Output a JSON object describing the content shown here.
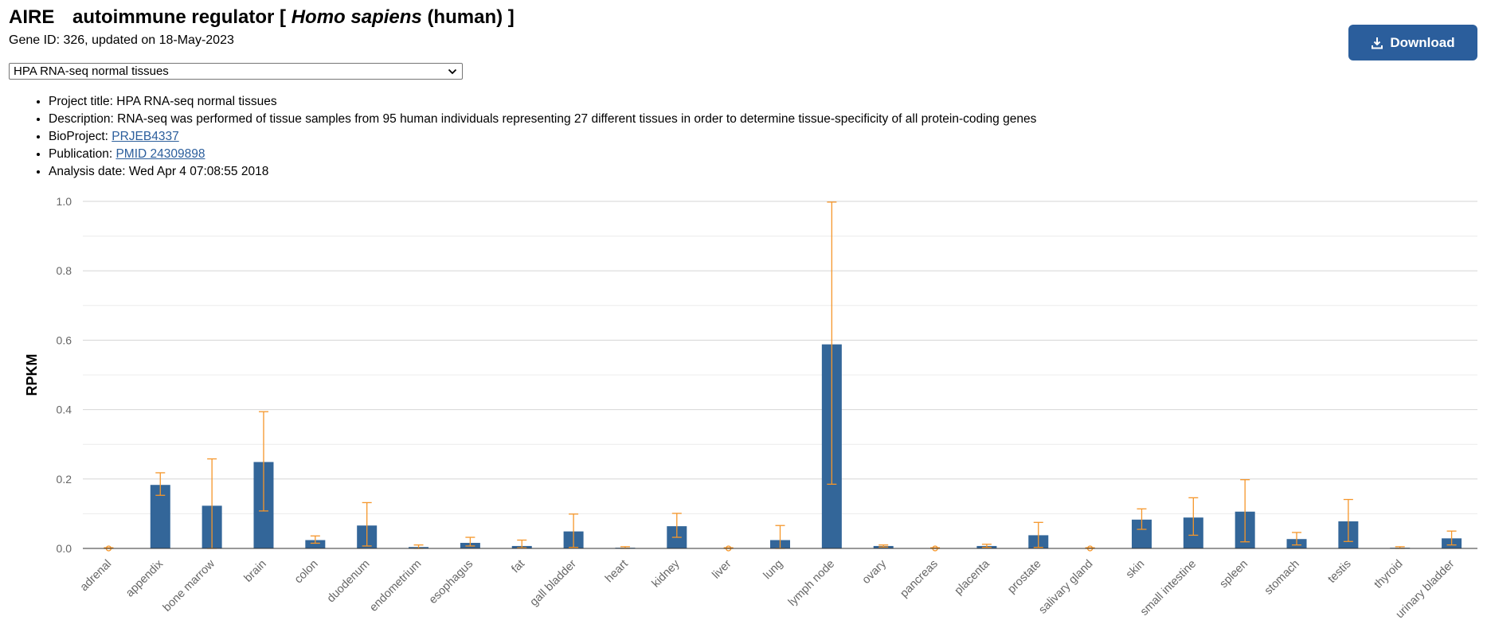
{
  "header": {
    "gene_symbol": "AIRE",
    "title_prefix": "autoimmune regulator [",
    "species": "Homo sapiens",
    "title_suffix": "(human) ]",
    "subtitle": "Gene ID: 326, updated on 18-May-2023"
  },
  "download_label": "Download",
  "dataset_select": {
    "selected": "HPA RNA-seq normal tissues"
  },
  "info": {
    "project_label": "Project title:",
    "project_value": "HPA RNA-seq normal tissues",
    "description_label": "Description:",
    "description_value": "RNA-seq was performed of tissue samples from 95 human individuals representing 27 different tissues in order to determine tissue-specificity of all protein-coding genes",
    "bioproject_label": "BioProject:",
    "bioproject_link": "PRJEB4337",
    "publication_label": "Publication:",
    "publication_link": "PMID 24309898",
    "analysis_label": "Analysis date:",
    "analysis_value": "Wed Apr 4 07:08:55 2018"
  },
  "colors": {
    "bar": "#336699",
    "error": "#f5962a",
    "grid": "#dddddd",
    "button": "#2b5e9c"
  },
  "chart_data": {
    "type": "bar",
    "ylabel": "RPKM",
    "ylim": [
      0,
      1.0
    ],
    "yticks": [
      "0.0",
      "0.2",
      "0.4",
      "0.6",
      "0.8",
      "1.0"
    ],
    "grid": true,
    "categories": [
      "adrenal",
      "appendix",
      "bone marrow",
      "brain",
      "colon",
      "duodenum",
      "endometrium",
      "esophagus",
      "fat",
      "gall bladder",
      "heart",
      "kidney",
      "liver",
      "lung",
      "lymph node",
      "ovary",
      "pancreas",
      "placenta",
      "prostate",
      "salivary gland",
      "skin",
      "small intestine",
      "spleen",
      "stomach",
      "testis",
      "thyroid",
      "urinary bladder"
    ],
    "values": [
      0.0,
      0.183,
      0.123,
      0.249,
      0.024,
      0.066,
      0.004,
      0.016,
      0.007,
      0.049,
      0.002,
      0.064,
      0.0,
      0.024,
      0.588,
      0.007,
      0.0,
      0.007,
      0.038,
      0.0,
      0.083,
      0.089,
      0.106,
      0.027,
      0.078,
      0.002,
      0.029
    ],
    "error_low": [
      0.0,
      0.153,
      0.0,
      0.108,
      0.015,
      0.007,
      0.0,
      0.007,
      0.002,
      0.003,
      0.0,
      0.032,
      0.0,
      0.0,
      0.185,
      0.004,
      0.0,
      0.003,
      0.003,
      0.0,
      0.055,
      0.038,
      0.019,
      0.01,
      0.02,
      0.0,
      0.01
    ],
    "error_high": [
      0.002,
      0.218,
      0.258,
      0.394,
      0.036,
      0.132,
      0.01,
      0.032,
      0.024,
      0.099,
      0.005,
      0.101,
      0.002,
      0.066,
      0.998,
      0.01,
      0.002,
      0.012,
      0.075,
      0.002,
      0.114,
      0.146,
      0.198,
      0.046,
      0.141,
      0.005,
      0.05
    ]
  }
}
